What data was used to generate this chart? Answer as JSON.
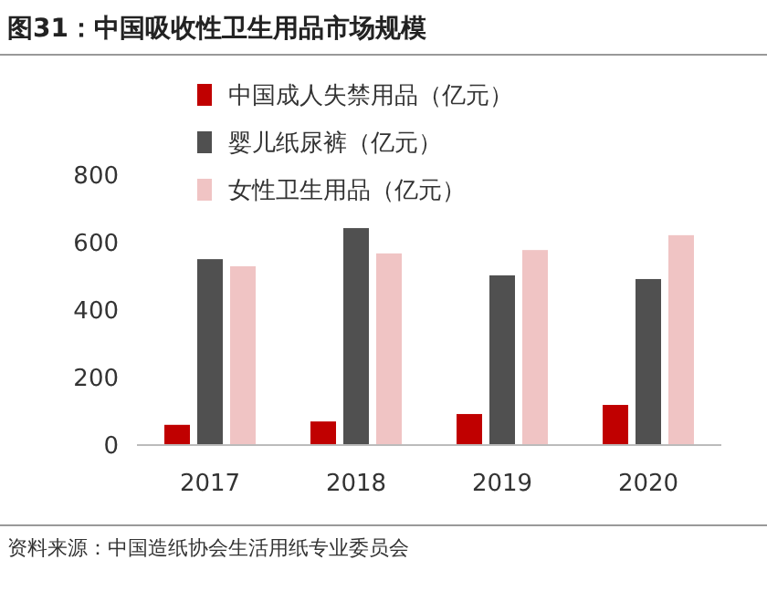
{
  "chart_data": {
    "type": "bar",
    "title": "图31：中国吸收性卫生用品市场规模",
    "categories": [
      "2017",
      "2018",
      "2019",
      "2020"
    ],
    "series": [
      {
        "name": "中国成人失禁用品（亿元）",
        "color": "#c00000",
        "values": [
          60,
          70,
          92,
          119
        ]
      },
      {
        "name": "婴儿纸尿裤（亿元）",
        "color": "#505050",
        "values": [
          551,
          643,
          503,
          492
        ]
      },
      {
        "name": "女性卫生用品（亿元）",
        "color": "#f0c4c4",
        "values": [
          530,
          568,
          578,
          622
        ]
      }
    ],
    "ylim": [
      0,
      800
    ],
    "yticks": [
      0,
      200,
      400,
      600,
      800
    ],
    "grid": false,
    "legend": "top left",
    "annotations": [
      "资料来源：中国造纸协会生活用纸专业委员会"
    ]
  }
}
